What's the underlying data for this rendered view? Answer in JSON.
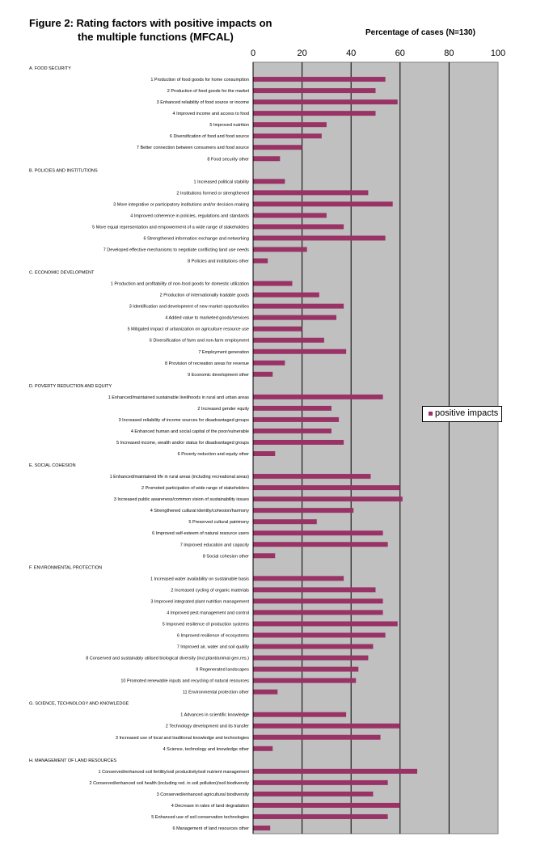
{
  "chart_data": {
    "type": "bar",
    "orientation": "horizontal",
    "title": "Figure 2: Rating factors with positive impacts on the multiple functions (MFCAL)",
    "title_lines": [
      "Figure 2: Rating factors with positive impacts on",
      "the multiple functions (MFCAL)"
    ],
    "xlabel": "Percentage of cases (N=130)",
    "xlim": [
      0,
      100
    ],
    "xticks": [
      0,
      20,
      40,
      60,
      80,
      100
    ],
    "grid": true,
    "legend_position": "right",
    "colors": {
      "bar": "#993366",
      "plot_background": "#c0c0c0"
    },
    "series": [
      {
        "name": "positive impacts"
      }
    ],
    "groups": [
      {
        "label": "A. FOOD SECURITY",
        "items": [
          {
            "label": "1 Production of food goods for home consumption",
            "value": 54
          },
          {
            "label": "2 Production of food goods for the market",
            "value": 50
          },
          {
            "label": "3 Enhanced reliability of food source or income",
            "value": 59
          },
          {
            "label": "4 Improved income and access to food",
            "value": 50
          },
          {
            "label": "5 Improved nutrition",
            "value": 30
          },
          {
            "label": "6 Diversification of food and food source",
            "value": 28
          },
          {
            "label": "7 Better connection between consumers and food source",
            "value": 20
          },
          {
            "label": "8 Food security other",
            "value": 11
          }
        ]
      },
      {
        "label": "B. POLICIES AND INSTITUTIONS",
        "items": [
          {
            "label": "1 Increased political stability",
            "value": 13
          },
          {
            "label": "2 Institutions formed or strengthened",
            "value": 47
          },
          {
            "label": "3 More integrative or participatory institutions and/or decision-making",
            "value": 57
          },
          {
            "label": "4 Improved coherence in policies, regulations and standards",
            "value": 30
          },
          {
            "label": "5 More equal representation and empowerment of a wide range of stakeholders",
            "value": 37
          },
          {
            "label": "6 Strengthened information exchange and networking",
            "value": 54
          },
          {
            "label": "7 Developed effective mechanisms to negotiate conflicting land use needs",
            "value": 22
          },
          {
            "label": "8 Policies and institutions other",
            "value": 6
          }
        ]
      },
      {
        "label": "C. ECONOMIC DEVELOPMENT",
        "items": [
          {
            "label": "1 Production and profitability of non-food goods for domestic utilization",
            "value": 16
          },
          {
            "label": "2 Production of internationally tradable goods",
            "value": 27
          },
          {
            "label": "3 Identification and development of new market opportunities",
            "value": 37
          },
          {
            "label": "4 Added value to marketed goods/services",
            "value": 34
          },
          {
            "label": "5 Mitigated impact of urbanization on agriculture resource use",
            "value": 20
          },
          {
            "label": "6 Diversification of farm and non-farm employment",
            "value": 29
          },
          {
            "label": "7 Employment generation",
            "value": 38
          },
          {
            "label": "8 Provision of recreation areas for revenue",
            "value": 13
          },
          {
            "label": "9 Economic development other",
            "value": 8
          }
        ]
      },
      {
        "label": "D. POVERTY REDUCTION AND EQUITY",
        "items": [
          {
            "label": "1 Enhanced/maintained sustainable livelihoods in rural and urban areas",
            "value": 53
          },
          {
            "label": "2 Increased gender equity",
            "value": 32
          },
          {
            "label": "3 Increased reliability of income sources for disadvantaged groups",
            "value": 35
          },
          {
            "label": "4 Enhanced human and social capital of the poor/vulnerable",
            "value": 32
          },
          {
            "label": "5 Increased income, wealth and/or status for disadvantaged groups",
            "value": 37
          },
          {
            "label": "6 Poverty reduction and equity other",
            "value": 9
          }
        ]
      },
      {
        "label": "E. SOCIAL COHESION",
        "items": [
          {
            "label": "1 Enhanced/maintained life in rural areas (including recreational areas)",
            "value": 48
          },
          {
            "label": "2 Promoted participation of wide range of stakeholders",
            "value": 60
          },
          {
            "label": "3 Increased public awareness/common vision of sustainability issues",
            "value": 61
          },
          {
            "label": "4 Strengthened cultural identity/cohesion/harmony",
            "value": 41
          },
          {
            "label": "5 Preserved cultural patrimony",
            "value": 26
          },
          {
            "label": "6 Improved self-esteem of natural resource users",
            "value": 53
          },
          {
            "label": "7 Improved education and capacity",
            "value": 55
          },
          {
            "label": "8 Social cohesion other",
            "value": 9
          }
        ]
      },
      {
        "label": "F. ENVIRONMENTAL PROTECTION",
        "items": [
          {
            "label": "1 Increased water availability on sustainable basis",
            "value": 37
          },
          {
            "label": "2 Increased cycling of organic materials",
            "value": 50
          },
          {
            "label": "3 Improved integrated plant nutrition management",
            "value": 53
          },
          {
            "label": "4 Improved pest management and control",
            "value": 53
          },
          {
            "label": "5 Improved resilience of production systems",
            "value": 59
          },
          {
            "label": "6 Improved resilience of ecosystems",
            "value": 54
          },
          {
            "label": "7 Improved air, water and soil quality",
            "value": 49
          },
          {
            "label": "8 Conserved and sustainably utilised biological diversity (incl.plant/animal gen.res.)",
            "value": 47
          },
          {
            "label": "9 Regenerated landscapes",
            "value": 43
          },
          {
            "label": "10 Promoted renewable inputs and recycling of natural resources",
            "value": 42
          },
          {
            "label": "11 Environmental protection other",
            "value": 10
          }
        ]
      },
      {
        "label": "G. SCIENCE, TECHNOLOGY AND KNOWLEDGE",
        "items": [
          {
            "label": "1 Advances in scientific knowledge",
            "value": 38
          },
          {
            "label": "2 Technology development and its transfer",
            "value": 60
          },
          {
            "label": "3 Increased use of local and traditional knowledge and technologies",
            "value": 52
          },
          {
            "label": "4 Science, technology and knowledge other",
            "value": 8
          }
        ]
      },
      {
        "label": "H. MANAGEMENT OF LAND RESOURCES",
        "items": [
          {
            "label": "1 Conserved/enhanced soil fertility/soil productivity/soil nutrient management",
            "value": 67
          },
          {
            "label": "2 Conserved/enhanced soil health (including red. in soil pollution)/soil biodiversity",
            "value": 55
          },
          {
            "label": "3 Conserved/enhanced agricultural biodiversity",
            "value": 49
          },
          {
            "label": "4 Decrease in rates of land degradation",
            "value": 60
          },
          {
            "label": "5 Enhanced use of soil conservation technologies",
            "value": 55
          },
          {
            "label": "6 Management of land resources other",
            "value": 7
          }
        ]
      }
    ]
  }
}
